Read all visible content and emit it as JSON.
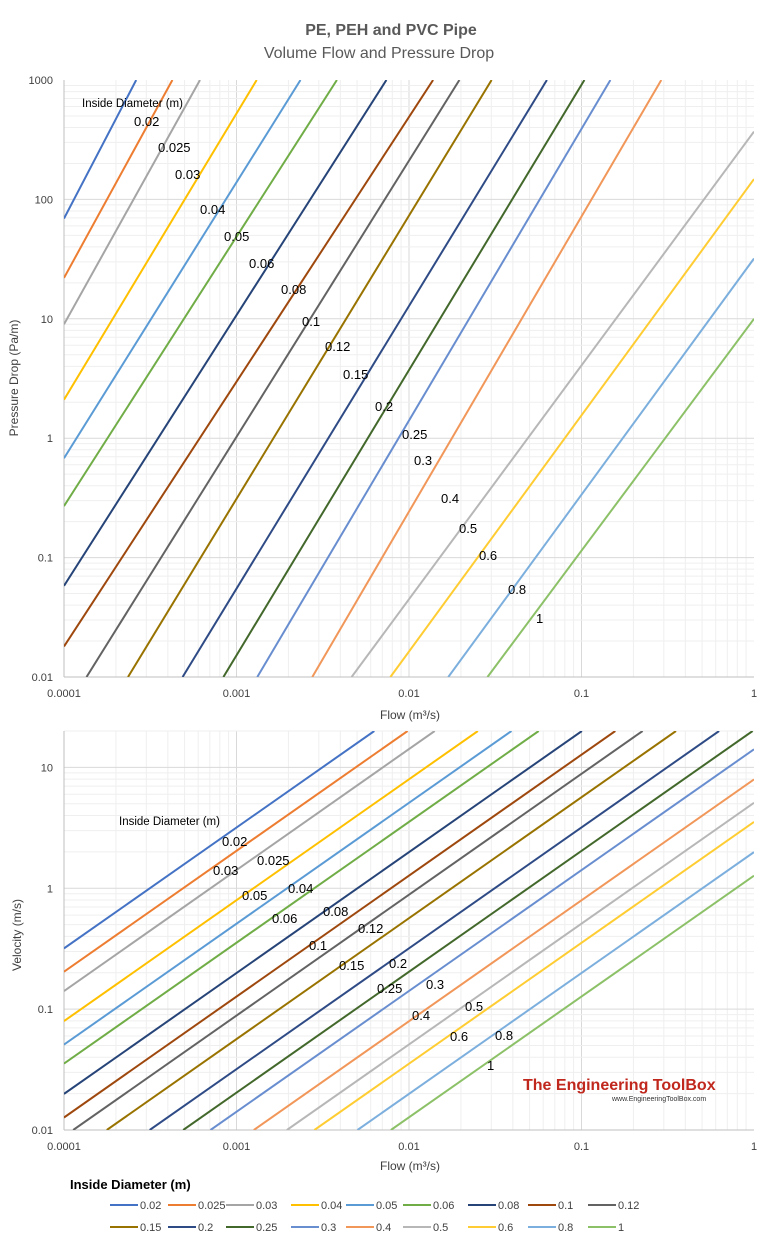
{
  "page": {
    "title": "PE, PEH and PVC Pipe",
    "subtitle": "Volume Flow and Pressure Drop"
  },
  "chart_data": [
    {
      "type": "line",
      "id": "pressure",
      "xlabel": "Flow (m³/s)",
      "ylabel": "Pressure Drop (Pa/m)",
      "xscale": "log",
      "yscale": "log",
      "xlim": [
        0.0001,
        1
      ],
      "ylim": [
        0.01,
        1000
      ],
      "xticks": [
        "0.0001",
        "0.001",
        "0.01",
        "0.1",
        "1"
      ],
      "yticks": [
        "0.01",
        "0.1",
        "1",
        "10",
        "100",
        "1000"
      ],
      "grid": true,
      "annotation_title": "Inside Diameter (m)",
      "series": [
        {
          "name": "0.02",
          "color": "#4472c4",
          "points": [
            [
              0.0001,
              69
            ],
            [
              0.000262,
              1000
            ]
          ]
        },
        {
          "name": "0.025",
          "color": "#ed7d31",
          "points": [
            [
              0.0001,
              22
            ],
            [
              0.000425,
              1000
            ]
          ]
        },
        {
          "name": "0.03",
          "color": "#a5a5a5",
          "points": [
            [
              0.0001,
              9
            ],
            [
              0.000614,
              1000
            ]
          ]
        },
        {
          "name": "0.04",
          "color": "#ffc000",
          "points": [
            [
              0.0001,
              2.1
            ],
            [
              0.00131,
              1000
            ]
          ]
        },
        {
          "name": "0.05",
          "color": "#5b9bd5",
          "points": [
            [
              0.0001,
              0.68
            ],
            [
              0.00235,
              1000
            ]
          ]
        },
        {
          "name": "0.06",
          "color": "#70ad47",
          "points": [
            [
              0.0001,
              0.27
            ],
            [
              0.00382,
              1000
            ]
          ]
        },
        {
          "name": "0.08",
          "color": "#264478",
          "points": [
            [
              0.0001,
              0.058
            ],
            [
              0.0074,
              1000
            ]
          ]
        },
        {
          "name": "0.1",
          "color": "#9e480e",
          "points": [
            [
              0.0001,
              0.018
            ],
            [
              0.0138,
              1000
            ]
          ]
        },
        {
          "name": "0.12",
          "color": "#636363",
          "points": [
            [
              0.000135,
              0.01
            ],
            [
              0.0196,
              1000
            ]
          ]
        },
        {
          "name": "0.15",
          "color": "#997300",
          "points": [
            [
              0.000235,
              0.01
            ],
            [
              0.0301,
              1000
            ]
          ]
        },
        {
          "name": "0.2",
          "color": "#2f4b86",
          "points": [
            [
              0.000487,
              0.01
            ],
            [
              0.063,
              1000
            ]
          ]
        },
        {
          "name": "0.25",
          "color": "#43682b",
          "points": [
            [
              0.00084,
              0.01
            ],
            [
              0.104,
              1000
            ]
          ]
        },
        {
          "name": "0.3",
          "color": "#698ed0",
          "points": [
            [
              0.00132,
              0.01
            ],
            [
              0.147,
              1000
            ]
          ]
        },
        {
          "name": "0.4",
          "color": "#f1975a",
          "points": [
            [
              0.00275,
              0.01
            ],
            [
              0.29,
              1000
            ]
          ]
        },
        {
          "name": "0.5",
          "color": "#b7b7b7",
          "points": [
            [
              0.00465,
              0.01
            ],
            [
              1,
              370
            ]
          ]
        },
        {
          "name": "0.6",
          "color": "#ffcd33",
          "points": [
            [
              0.0078,
              0.01
            ],
            [
              1,
              148
            ]
          ]
        },
        {
          "name": "0.8",
          "color": "#7cafdd",
          "points": [
            [
              0.0169,
              0.01
            ],
            [
              1,
              32
            ]
          ]
        },
        {
          "name": "1",
          "color": "#8cc168",
          "points": [
            [
              0.0285,
              0.01
            ],
            [
              1,
              10
            ]
          ]
        }
      ]
    },
    {
      "type": "line",
      "id": "velocity",
      "xlabel": "Flow (m³/s)",
      "ylabel": "Velocity (m/s)",
      "xscale": "log",
      "yscale": "log",
      "xlim": [
        0.0001,
        1
      ],
      "ylim": [
        0.01,
        20
      ],
      "xticks": [
        "0.0001",
        "0.001",
        "0.01",
        "0.1",
        "1"
      ],
      "yticks": [
        "0.01",
        "0.1",
        "1",
        "10"
      ],
      "grid": true,
      "annotation_title": "Inside Diameter (m)",
      "series": [
        {
          "name": "0.02",
          "color": "#4472c4",
          "points": [
            [
              0.0001,
              0.318
            ],
            [
              0.00629,
              20
            ]
          ]
        },
        {
          "name": "0.025",
          "color": "#ed7d31",
          "points": [
            [
              0.0001,
              0.204
            ],
            [
              0.00982,
              20
            ]
          ]
        },
        {
          "name": "0.03",
          "color": "#a5a5a5",
          "points": [
            [
              0.0001,
              0.141
            ],
            [
              0.0141,
              20
            ]
          ]
        },
        {
          "name": "0.04",
          "color": "#ffc000",
          "points": [
            [
              0.0001,
              0.0796
            ],
            [
              0.0251,
              20
            ]
          ]
        },
        {
          "name": "0.05",
          "color": "#5b9bd5",
          "points": [
            [
              0.0001,
              0.0509
            ],
            [
              0.0393,
              20
            ]
          ]
        },
        {
          "name": "0.06",
          "color": "#70ad47",
          "points": [
            [
              0.0001,
              0.0354
            ],
            [
              0.0565,
              20
            ]
          ]
        },
        {
          "name": "0.08",
          "color": "#264478",
          "points": [
            [
              0.0001,
              0.0199
            ],
            [
              0.1005,
              20
            ]
          ]
        },
        {
          "name": "0.1",
          "color": "#9e480e",
          "points": [
            [
              0.0001,
              0.0127
            ],
            [
              0.157,
              20
            ]
          ]
        },
        {
          "name": "0.12",
          "color": "#636363",
          "points": [
            [
              0.000113,
              0.01
            ],
            [
              0.226,
              20
            ]
          ]
        },
        {
          "name": "0.15",
          "color": "#997300",
          "points": [
            [
              0.000177,
              0.01
            ],
            [
              0.353,
              20
            ]
          ]
        },
        {
          "name": "0.2",
          "color": "#2f4b86",
          "points": [
            [
              0.000314,
              0.01
            ],
            [
              0.628,
              20
            ]
          ]
        },
        {
          "name": "0.25",
          "color": "#43682b",
          "points": [
            [
              0.000491,
              0.01
            ],
            [
              0.982,
              20
            ]
          ]
        },
        {
          "name": "0.3",
          "color": "#698ed0",
          "points": [
            [
              0.000707,
              0.01
            ],
            [
              1,
              14.1
            ]
          ]
        },
        {
          "name": "0.4",
          "color": "#f1975a",
          "points": [
            [
              0.00126,
              0.01
            ],
            [
              1,
              7.96
            ]
          ]
        },
        {
          "name": "0.5",
          "color": "#b7b7b7",
          "points": [
            [
              0.00196,
              0.01
            ],
            [
              1,
              5.09
            ]
          ]
        },
        {
          "name": "0.6",
          "color": "#ffcd33",
          "points": [
            [
              0.00283,
              0.01
            ],
            [
              1,
              3.54
            ]
          ]
        },
        {
          "name": "0.8",
          "color": "#7cafdd",
          "points": [
            [
              0.00503,
              0.01
            ],
            [
              1,
              1.99
            ]
          ]
        },
        {
          "name": "1",
          "color": "#8cc168",
          "points": [
            [
              0.00785,
              0.01
            ],
            [
              1,
              1.27
            ]
          ]
        }
      ]
    }
  ],
  "legend": {
    "title": "Inside  Diameter (m)",
    "items": [
      "0.02",
      "0.025",
      "0.03",
      "0.04",
      "0.05",
      "0.06",
      "0.08",
      "0.1",
      "0.12",
      "0.15",
      "0.2",
      "0.25",
      "0.3",
      "0.4",
      "0.5",
      "0.6",
      "0.8",
      "1"
    ]
  },
  "watermark": {
    "name": "The Engineering ToolBox",
    "url": "www.EngineeringToolBox.com"
  }
}
